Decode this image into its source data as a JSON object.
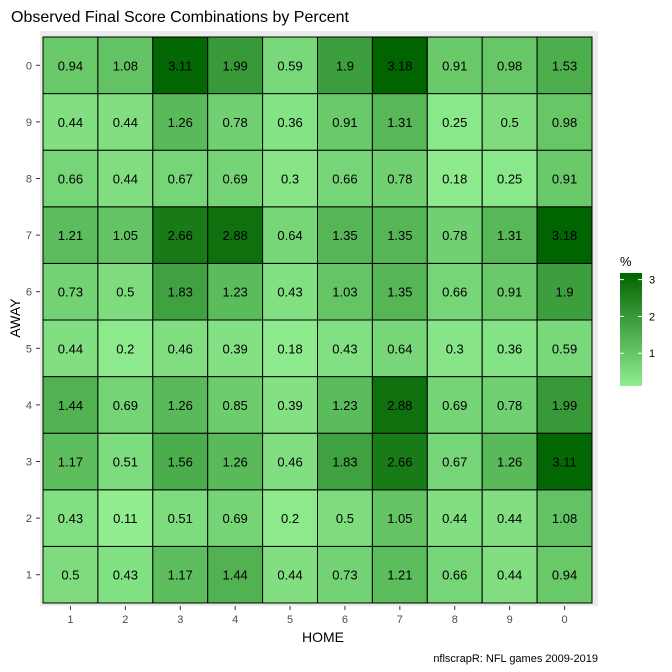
{
  "chart_data": {
    "type": "heatmap",
    "title": "Observed Final Score Combinations by Percent",
    "xlabel": "HOME",
    "ylabel": "AWAY",
    "x_categories": [
      "1",
      "2",
      "3",
      "4",
      "5",
      "6",
      "7",
      "8",
      "9",
      "0"
    ],
    "y_categories": [
      "1",
      "2",
      "3",
      "4",
      "5",
      "6",
      "7",
      "8",
      "9",
      "0"
    ],
    "values": [
      [
        0.5,
        0.43,
        1.17,
        1.44,
        0.44,
        0.73,
        1.21,
        0.66,
        0.44,
        0.94
      ],
      [
        0.43,
        0.11,
        0.51,
        0.69,
        0.2,
        0.5,
        1.05,
        0.44,
        0.44,
        1.08
      ],
      [
        1.17,
        0.51,
        1.56,
        1.26,
        0.46,
        1.83,
        2.66,
        0.67,
        1.26,
        3.11
      ],
      [
        1.44,
        0.69,
        1.26,
        0.85,
        0.39,
        1.23,
        2.88,
        0.69,
        0.78,
        1.99
      ],
      [
        0.44,
        0.2,
        0.46,
        0.39,
        0.18,
        0.43,
        0.64,
        0.3,
        0.36,
        0.59
      ],
      [
        0.73,
        0.5,
        1.83,
        1.23,
        0.43,
        1.03,
        1.35,
        0.66,
        0.91,
        1.9
      ],
      [
        1.21,
        1.05,
        2.66,
        2.88,
        0.64,
        1.35,
        1.35,
        0.78,
        1.31,
        3.18
      ],
      [
        0.66,
        0.44,
        0.67,
        0.69,
        0.3,
        0.66,
        0.78,
        0.18,
        0.25,
        0.91
      ],
      [
        0.44,
        0.44,
        1.26,
        0.78,
        0.36,
        0.91,
        1.31,
        0.25,
        0.5,
        0.98
      ],
      [
        0.94,
        1.08,
        3.11,
        1.99,
        0.59,
        1.9,
        3.18,
        0.91,
        0.98,
        1.53
      ]
    ],
    "color_scale": {
      "low_color": "#90ee90",
      "high_color": "#006400",
      "min": 0.11,
      "max": 3.18
    },
    "legend": {
      "title": "%",
      "ticks": [
        1,
        2,
        3
      ],
      "position": "right"
    },
    "caption": "nflscrapR: NFL games 2009-2019",
    "panel_background": "#ebebeb",
    "grid": false
  }
}
